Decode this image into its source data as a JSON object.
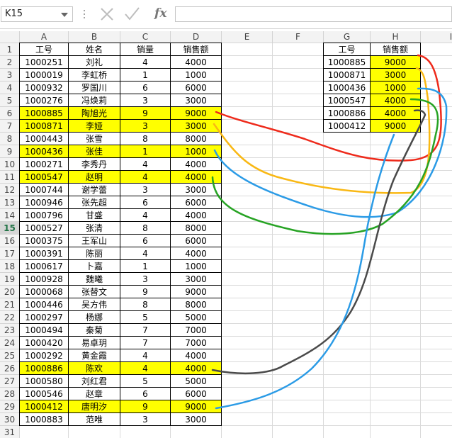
{
  "formula_bar": {
    "name_box": "K15",
    "function_label": "fx"
  },
  "columns": [
    "A",
    "B",
    "C",
    "D",
    "E",
    "F",
    "G",
    "H",
    "I"
  ],
  "row_numbers": [
    "1",
    "2",
    "3",
    "4",
    "5",
    "6",
    "7",
    "8",
    "9",
    "10",
    "11",
    "12",
    "13",
    "14",
    "15",
    "16",
    "17",
    "18",
    "19",
    "20",
    "21",
    "22",
    "23",
    "24",
    "25",
    "26",
    "27",
    "28",
    "29",
    "30",
    "31"
  ],
  "main_table": {
    "header": [
      "工号",
      "姓名",
      "销量",
      "销售额"
    ],
    "rows": [
      [
        "1000251",
        "刘礼",
        "4",
        "4000"
      ],
      [
        "1000019",
        "李虹桥",
        "1",
        "1000"
      ],
      [
        "1000932",
        "罗国川",
        "6",
        "6000"
      ],
      [
        "1000276",
        "冯焕莉",
        "3",
        "3000"
      ],
      [
        "1000885",
        "陶旭光",
        "9",
        "9000"
      ],
      [
        "1000871",
        "李娅",
        "3",
        "3000"
      ],
      [
        "1000443",
        "张雪",
        "8",
        "8000"
      ],
      [
        "1000436",
        "张佳",
        "1",
        "1000"
      ],
      [
        "1000271",
        "李秀丹",
        "4",
        "4000"
      ],
      [
        "1000547",
        "赵明",
        "4",
        "4000"
      ],
      [
        "1000744",
        "谢学蕾",
        "3",
        "3000"
      ],
      [
        "1000946",
        "张先超",
        "6",
        "6000"
      ],
      [
        "1000796",
        "甘盛",
        "4",
        "4000"
      ],
      [
        "1000527",
        "张清",
        "8",
        "8000"
      ],
      [
        "1000375",
        "王军山",
        "6",
        "6000"
      ],
      [
        "1000391",
        "陈丽",
        "4",
        "4000"
      ],
      [
        "1000617",
        "卜嘉",
        "1",
        "1000"
      ],
      [
        "1000928",
        "魏曦",
        "3",
        "3000"
      ],
      [
        "1000068",
        "张替文",
        "9",
        "9000"
      ],
      [
        "1000446",
        "吴方伟",
        "8",
        "8000"
      ],
      [
        "1000297",
        "杨娜",
        "5",
        "5000"
      ],
      [
        "1000494",
        "秦菊",
        "7",
        "7000"
      ],
      [
        "1000420",
        "易卓玥",
        "7",
        "7000"
      ],
      [
        "1000292",
        "黄金霞",
        "4",
        "4000"
      ],
      [
        "1000886",
        "陈欢",
        "4",
        "4000"
      ],
      [
        "1000580",
        "刘红君",
        "5",
        "5000"
      ],
      [
        "1000546",
        "赵章",
        "6",
        "6000"
      ],
      [
        "1000412",
        "唐明汐",
        "9",
        "9000"
      ],
      [
        "1000883",
        "范唯",
        "3",
        "3000"
      ]
    ]
  },
  "lookup_table": {
    "header": [
      "工号",
      "销售额"
    ],
    "rows": [
      [
        "1000885",
        "9000"
      ],
      [
        "1000871",
        "3000"
      ],
      [
        "1000436",
        "1000"
      ],
      [
        "1000547",
        "4000"
      ],
      [
        "1000886",
        "4000"
      ],
      [
        "1000412",
        "9000"
      ]
    ]
  }
}
